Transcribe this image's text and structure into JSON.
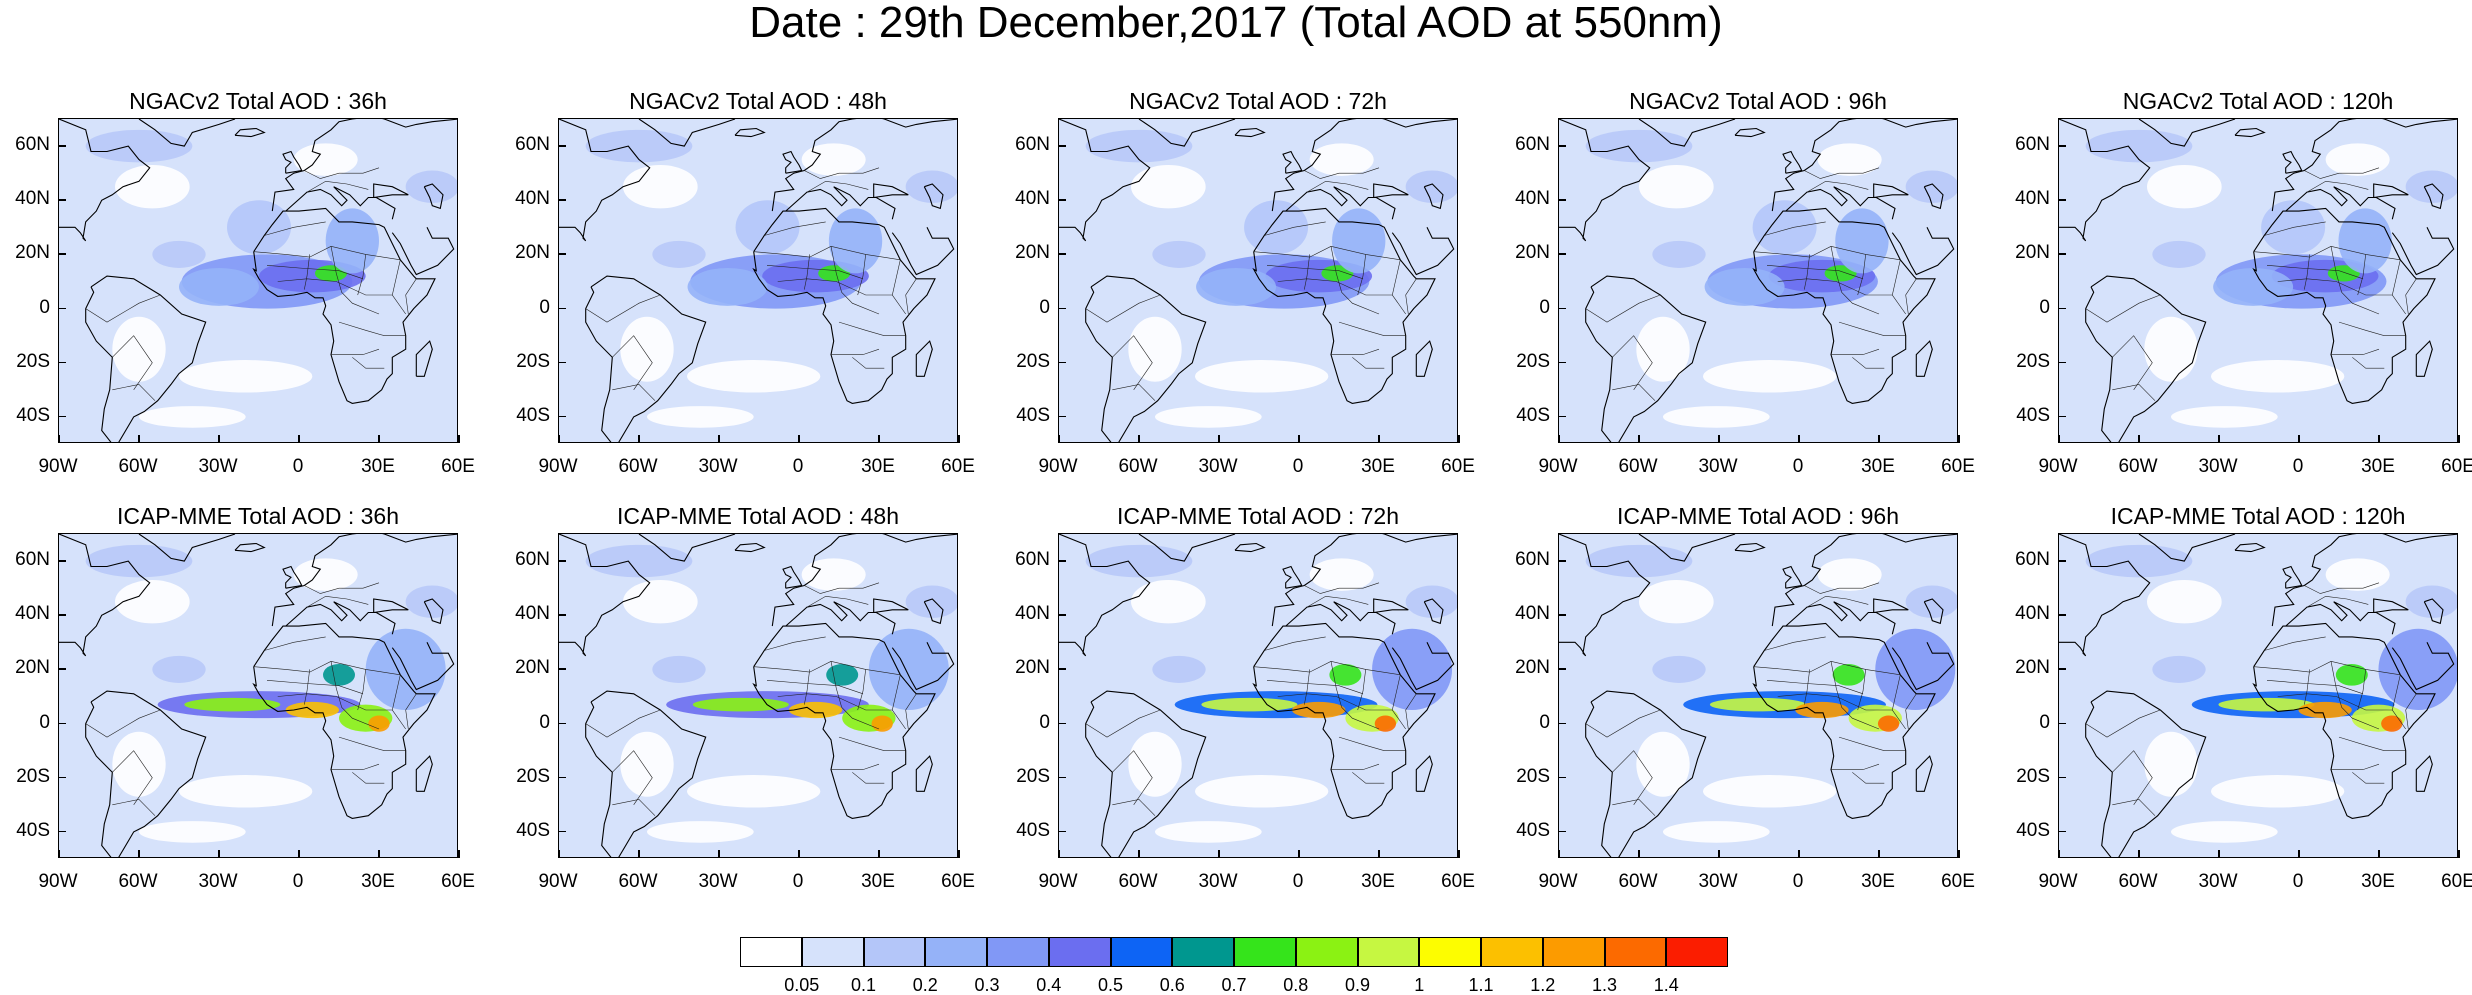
{
  "title": "Date : 29th December,2017 (Total AOD at 550nm)",
  "lat_ticks": [
    "60N",
    "40N",
    "20N",
    "0",
    "20S",
    "40S"
  ],
  "lon_ticks": [
    "90W",
    "60W",
    "30W",
    "0",
    "30E",
    "60E"
  ],
  "panels": [
    {
      "title": "NGACv2 Total AOD : 36h",
      "model": "NGACv2",
      "lead": "36h"
    },
    {
      "title": "NGACv2 Total AOD : 48h",
      "model": "NGACv2",
      "lead": "48h"
    },
    {
      "title": "NGACv2 Total AOD : 72h",
      "model": "NGACv2",
      "lead": "72h"
    },
    {
      "title": "NGACv2 Total AOD : 96h",
      "model": "NGACv2",
      "lead": "96h"
    },
    {
      "title": "NGACv2 Total AOD : 120h",
      "model": "NGACv2",
      "lead": "120h"
    },
    {
      "title": "ICAP-MME Total AOD : 36h",
      "model": "ICAP-MME",
      "lead": "36h"
    },
    {
      "title": "ICAP-MME Total AOD : 48h",
      "model": "ICAP-MME",
      "lead": "48h"
    },
    {
      "title": "ICAP-MME Total AOD : 72h",
      "model": "ICAP-MME",
      "lead": "72h"
    },
    {
      "title": "ICAP-MME Total AOD : 96h",
      "model": "ICAP-MME",
      "lead": "96h"
    },
    {
      "title": "ICAP-MME Total AOD : 120h",
      "model": "ICAP-MME",
      "lead": "120h"
    }
  ],
  "colorbar": {
    "labels": [
      "0.05",
      "0.1",
      "0.2",
      "0.3",
      "0.4",
      "0.5",
      "0.6",
      "0.7",
      "0.8",
      "0.9",
      "1",
      "1.1",
      "1.2",
      "1.3",
      "1.4"
    ],
    "colors": [
      "#ffffff",
      "#d6e2fb",
      "#b4c6f9",
      "#95b2f8",
      "#8198f6",
      "#6b6ef0",
      "#0d64f5",
      "#00978f",
      "#35e41b",
      "#8bf213",
      "#c6f741",
      "#fdfd00",
      "#fcc000",
      "#fc9b00",
      "#fc6a00",
      "#fb1d00"
    ]
  }
}
